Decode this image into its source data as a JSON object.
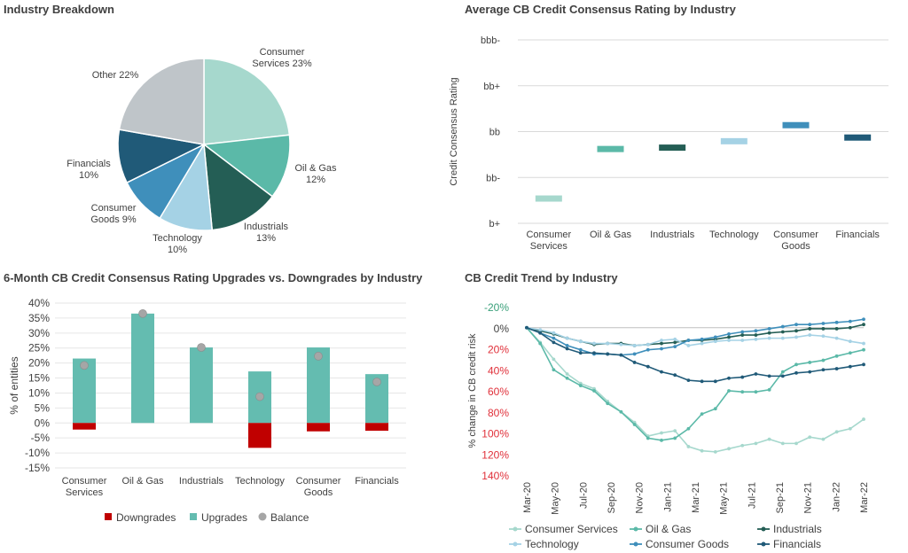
{
  "panels": {
    "pie_title": "Industry Breakdown",
    "rating_title": "Average CB Credit Consensus Rating by Industry",
    "updown_title": "6-Month CB Credit Consensus Rating Upgrades vs. Downgrades by Industry",
    "trend_title": "CB Credit Trend by Industry"
  },
  "colors": {
    "consumer_services": "#a6d8cd",
    "oil_gas": "#5bb9a8",
    "industrials": "#245e55",
    "technology": "#a5d2e5",
    "consumer_goods": "#3f8fbb",
    "financials": "#205a78",
    "other": "#bfc5c9",
    "upgrades": "#64bcb0",
    "downgrades": "#c00000",
    "balance": "#a6a6a6",
    "neg_label": "#3aa07a",
    "pos_label": "#e0303a"
  },
  "chart_data": [
    {
      "type": "pie",
      "title": "Industry Breakdown",
      "slices": [
        {
          "name": "Consumer Services",
          "value": 23,
          "label_lines": [
            "Consumer",
            "Services 23%"
          ]
        },
        {
          "name": "Oil & Gas",
          "value": 12,
          "label_lines": [
            "Oil & Gas",
            "12%"
          ]
        },
        {
          "name": "Industrials",
          "value": 13,
          "label_lines": [
            "Industrials",
            "13%"
          ]
        },
        {
          "name": "Technology",
          "value": 10,
          "label_lines": [
            "Technology",
            "10%"
          ]
        },
        {
          "name": "Consumer Goods",
          "value": 9,
          "label_lines": [
            "Consumer",
            "Goods 9%"
          ]
        },
        {
          "name": "Financials",
          "value": 10,
          "label_lines": [
            "Financials",
            "10%"
          ]
        },
        {
          "name": "Other",
          "value": 22,
          "label_lines": [
            "Other 22%"
          ]
        }
      ]
    },
    {
      "type": "scatter",
      "title": "Average CB Credit Consensus Rating by Industry",
      "ylabel": "Credit Consensus Rating",
      "y_ticks": [
        "b+",
        "bb-",
        "bb",
        "bb+",
        "bbb-"
      ],
      "ylim": [
        0,
        4
      ],
      "categories": [
        [
          "Consumer",
          "Services"
        ],
        [
          "Oil & Gas"
        ],
        [
          "Industrials"
        ],
        [
          "Technology"
        ],
        [
          "Consumer",
          "Goods"
        ],
        [
          "Financials"
        ]
      ],
      "values": [
        0.55,
        1.63,
        1.66,
        1.8,
        2.15,
        1.88
      ]
    },
    {
      "type": "bar",
      "title": "6-Month CB Credit Consensus Rating Upgrades vs. Downgrades by Industry",
      "ylabel": "% of entities",
      "ylim": [
        -15,
        40
      ],
      "y_ticks": [
        "-15%",
        "-10%",
        "-5%",
        "0%",
        "5%",
        "10%",
        "15%",
        "20%",
        "25%",
        "30%",
        "35%",
        "40%"
      ],
      "categories": [
        [
          "Consumer",
          "Services"
        ],
        [
          "Oil & Gas"
        ],
        [
          "Industrials"
        ],
        [
          "Technology"
        ],
        [
          "Consumer",
          "Goods"
        ],
        [
          "Financials"
        ]
      ],
      "series": [
        {
          "name": "Downgrades",
          "values": [
            -2.2,
            0,
            0,
            -8.3,
            -2.8,
            -2.6
          ]
        },
        {
          "name": "Upgrades",
          "values": [
            21.5,
            36.5,
            25.2,
            17.2,
            25.2,
            16.3
          ]
        },
        {
          "name": "Balance",
          "values": [
            19.2,
            36.5,
            25.2,
            8.8,
            22.3,
            13.7
          ]
        }
      ],
      "legend_position": "bottom"
    },
    {
      "type": "line",
      "title": "CB Credit Trend by Industry",
      "ylabel": "% change in CB credit risk",
      "y_reversed": true,
      "ylim": [
        -20,
        140
      ],
      "y_ticks": [
        "-20%",
        "0%",
        "20%",
        "40%",
        "60%",
        "80%",
        "100%",
        "120%",
        "140%"
      ],
      "x_ticks": [
        "Mar-20",
        "May-20",
        "Jul-20",
        "Sep-20",
        "Nov-20",
        "Jan-21",
        "Mar-21",
        "May-21",
        "Jul-21",
        "Sep-21",
        "Nov-21",
        "Jan-22",
        "Mar-22"
      ],
      "legend_position": "bottom",
      "series": [
        {
          "name": "Consumer Services",
          "values": [
            0,
            14,
            30,
            44,
            53,
            58,
            70,
            80,
            90,
            103,
            100,
            98,
            113,
            117,
            118,
            115,
            112,
            110,
            106,
            110,
            110,
            104,
            106,
            99,
            96,
            87
          ]
        },
        {
          "name": "Oil & Gas",
          "values": [
            0,
            15,
            40,
            48,
            55,
            60,
            72,
            80,
            92,
            105,
            107,
            105,
            96,
            82,
            77,
            60,
            61,
            61,
            59,
            42,
            35,
            33,
            31,
            27,
            24,
            21
          ]
        },
        {
          "name": "Industrials",
          "values": [
            0,
            3,
            6,
            10,
            13,
            16,
            15,
            15,
            17,
            16,
            15,
            14,
            12,
            12,
            11,
            9,
            7,
            7,
            5,
            4,
            3,
            1,
            1,
            1,
            0,
            -3
          ]
        },
        {
          "name": "Technology",
          "values": [
            0,
            2,
            5,
            10,
            13,
            15,
            15,
            16,
            17,
            16,
            12,
            11,
            17,
            15,
            13,
            12,
            12,
            11,
            10,
            10,
            9,
            7,
            8,
            10,
            13,
            15
          ]
        },
        {
          "name": "Consumer Goods",
          "values": [
            0,
            5,
            10,
            17,
            21,
            25,
            25,
            26,
            25,
            21,
            20,
            18,
            12,
            11,
            9,
            6,
            4,
            3,
            1,
            -1,
            -3,
            -3,
            -4,
            -5,
            -6,
            -8
          ]
        },
        {
          "name": "Financials",
          "values": [
            0,
            5,
            14,
            20,
            24,
            24,
            25,
            26,
            33,
            37,
            42,
            45,
            50,
            51,
            51,
            48,
            47,
            44,
            46,
            46,
            43,
            42,
            40,
            39,
            37,
            35
          ]
        }
      ]
    }
  ],
  "legends": {
    "updown": [
      "Downgrades",
      "Upgrades",
      "Balance"
    ],
    "trend": [
      "Consumer Services",
      "Oil & Gas",
      "Industrials",
      "Technology",
      "Consumer Goods",
      "Financials"
    ]
  }
}
